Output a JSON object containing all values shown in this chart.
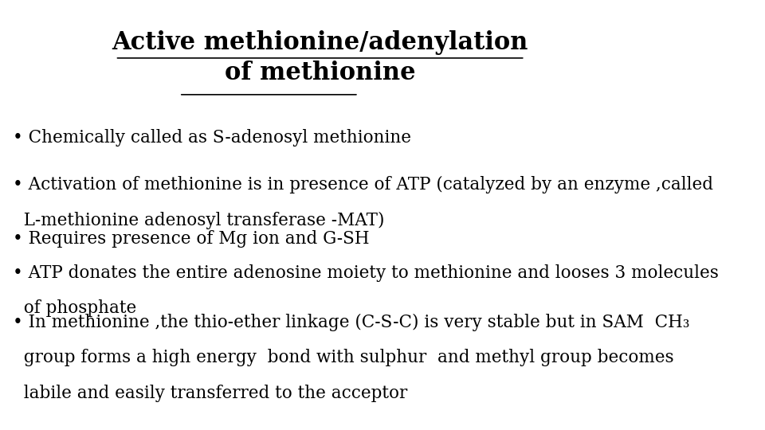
{
  "title_line1": "Active methionine/adenylation",
  "title_line2": "of methionine",
  "title_fontsize": 22,
  "title_bold": true,
  "title_underline": true,
  "background_color": "#ffffff",
  "text_color": "#000000",
  "bullet_fontsize": 15.5,
  "bullet_font": "DejaVu Serif",
  "bullets": [
    {
      "main": "• Chemically called as S-adenosyl methionine",
      "continuation": null
    },
    {
      "main": "• Activation of methionine is in presence of ATP (catalyzed by an enzyme ,called",
      "continuation": "  L-methionine adenosyl transferase -MAT)"
    },
    {
      "main": "• Requires presence of Mg ion and G-SH",
      "continuation": null
    },
    {
      "main": "• ATP donates the entire adenosine moiety to methionine and looses 3 molecules",
      "continuation": "  of phosphate"
    },
    {
      "main": "• In methionine ,the thio-ether linkage (C-S-C) is very stable but in SAM  CH₃",
      "continuation_parts": [
        "  group forms a high energy  bond with sulphur  and methyl group becomes",
        "  labile and easily transferred to the acceptor"
      ]
    }
  ]
}
